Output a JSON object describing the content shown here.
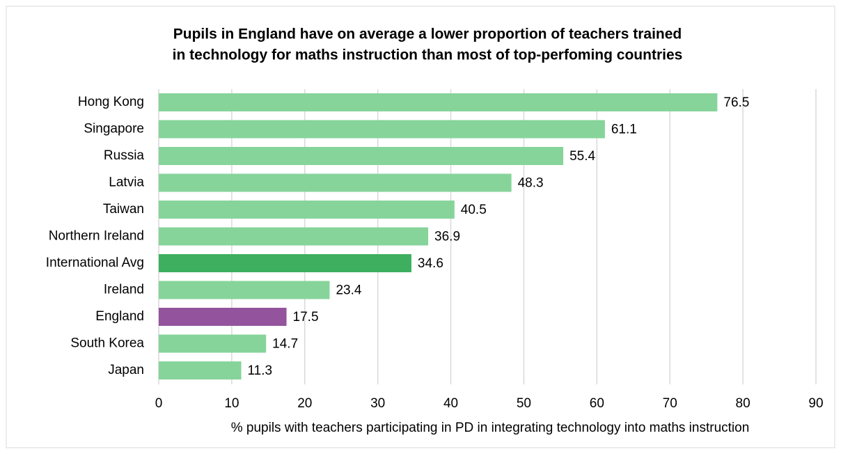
{
  "chart_data": {
    "type": "barh",
    "title": [
      "Pupils in England have on average a lower proportion of teachers trained",
      "in technology for maths instruction than most of top-perfoming countries"
    ],
    "categories": [
      "Hong Kong",
      "Singapore",
      "Russia",
      "Latvia",
      "Taiwan",
      "Northern Ireland",
      "International Avg",
      "Ireland",
      "England",
      "South Korea",
      "Japan"
    ],
    "values": [
      76.5,
      61.1,
      55.4,
      48.3,
      40.5,
      36.9,
      34.6,
      23.4,
      17.5,
      14.7,
      11.3
    ],
    "colors": [
      "#86d49a",
      "#86d49a",
      "#86d49a",
      "#86d49a",
      "#86d49a",
      "#86d49a",
      "#3daf5e",
      "#86d49a",
      "#93549d",
      "#86d49a",
      "#86d49a"
    ],
    "xlabel": "% pupils with teachers participating in PD in integrating technology into maths instruction",
    "xlim": [
      0,
      90
    ],
    "xticks": [
      0,
      10,
      20,
      30,
      40,
      50,
      60,
      70,
      80,
      90
    ],
    "grid": true
  }
}
